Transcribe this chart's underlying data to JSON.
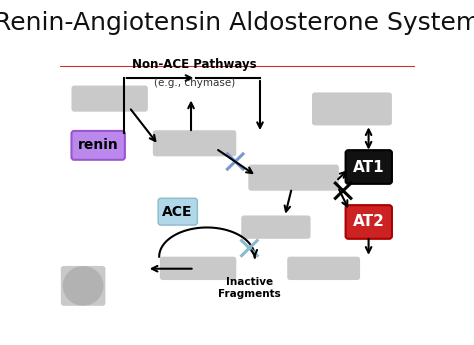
{
  "title": "Renin-Angiotensin Aldosterone System",
  "title_fontsize": 18,
  "background_color": "#ffffff",
  "separator_line_color": "#cc3333",
  "non_ace_label": "Non-ACE Pathways",
  "non_ace_sub": "(e.g., chymase)",
  "inactive_label": "Inactive\nFragments",
  "renin_label": "renin",
  "ace_label": "ACE",
  "at1_label": "AT1",
  "at2_label": "AT2"
}
